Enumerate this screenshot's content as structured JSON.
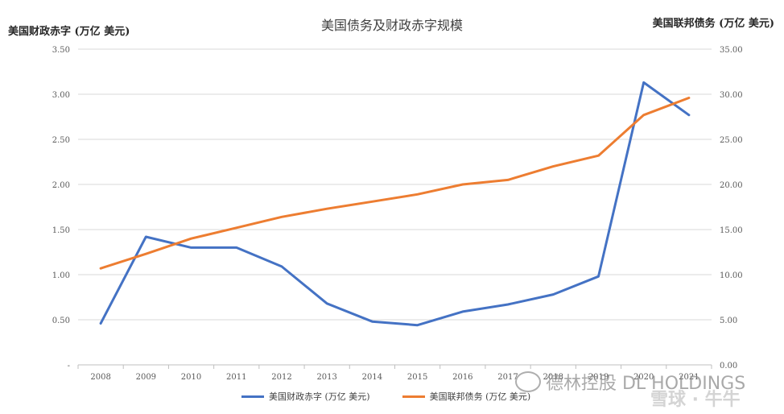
{
  "chart_data": {
    "type": "line",
    "title": "美国债务及财政赤字规模",
    "left_axis_label": "美国财政赤字 (万亿 美元)",
    "right_axis_label": "美国联邦债务 (万亿 美元)",
    "categories": [
      "2008",
      "2009",
      "2010",
      "2011",
      "2012",
      "2013",
      "2014",
      "2015",
      "2016",
      "2017",
      "2018",
      "2019",
      "2020",
      "2021"
    ],
    "left_ticks": [
      "-",
      "0.50",
      "1.00",
      "1.50",
      "2.00",
      "2.50",
      "3.00",
      "3.50"
    ],
    "right_ticks": [
      "0.00",
      "5.00",
      "10.00",
      "15.00",
      "20.00",
      "25.00",
      "30.00",
      "35.00"
    ],
    "left_ylim": [
      0,
      3.5
    ],
    "right_ylim": [
      0,
      35
    ],
    "series": [
      {
        "name": "美国财政赤字 (万亿 美元)",
        "axis": "left",
        "color": "#4472C4",
        "values": [
          0.46,
          1.42,
          1.3,
          1.3,
          1.09,
          0.68,
          0.48,
          0.44,
          0.59,
          0.67,
          0.78,
          0.98,
          3.13,
          2.77
        ]
      },
      {
        "name": "美国联邦债务 (万亿 美元)",
        "axis": "right",
        "color": "#ED7D31",
        "values": [
          10.7,
          12.3,
          14.0,
          15.2,
          16.4,
          17.3,
          18.1,
          18.9,
          20.0,
          20.5,
          22.0,
          23.2,
          27.7,
          29.6
        ]
      }
    ],
    "grid": true,
    "legend": "bottom"
  },
  "watermark": {
    "text": "德林控股 DL HOLDINGS",
    "secondary": "雪球 · 牛牛"
  }
}
